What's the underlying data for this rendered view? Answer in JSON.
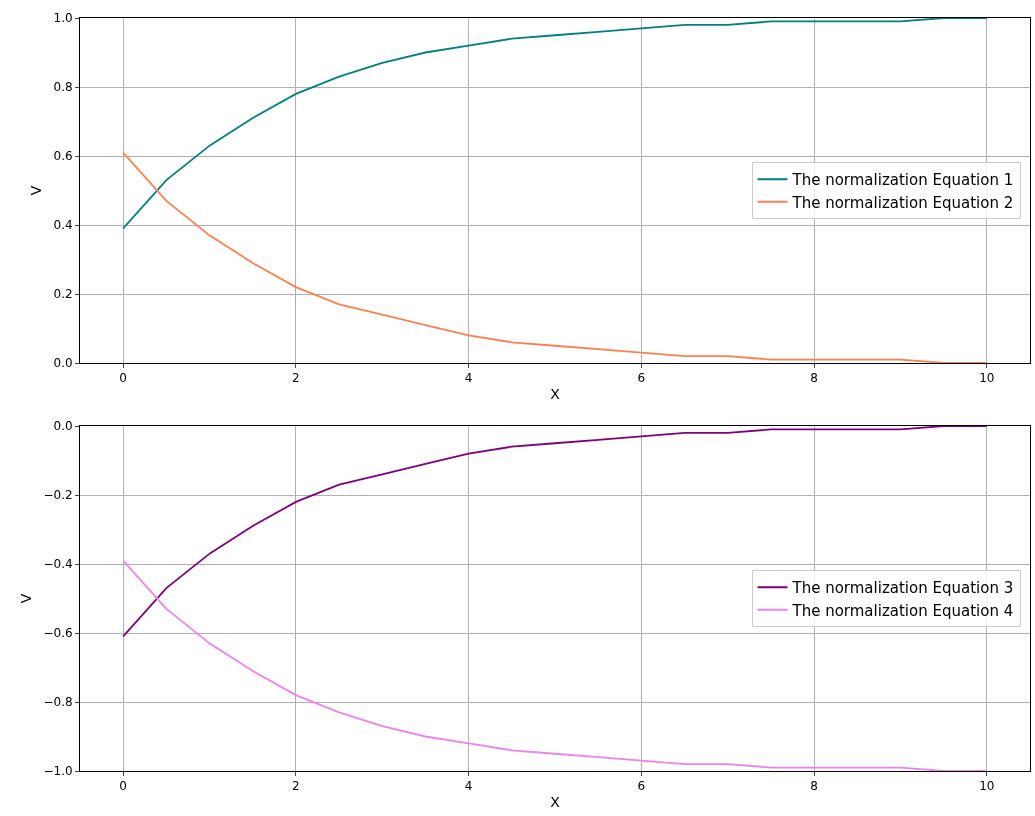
{
  "chart_data": [
    {
      "type": "line",
      "xlabel": "X",
      "ylabel": "V",
      "x": [
        0,
        0.5,
        1,
        1.5,
        2,
        2.5,
        3,
        3.5,
        4,
        4.5,
        5,
        5.5,
        6,
        6.5,
        7,
        7.5,
        8,
        8.5,
        9,
        9.5,
        10
      ],
      "series": [
        {
          "name": "The normalization Equation 1",
          "color": "#008080",
          "values": [
            0.39,
            0.53,
            0.63,
            0.71,
            0.78,
            0.83,
            0.87,
            0.9,
            0.92,
            0.94,
            0.95,
            0.96,
            0.97,
            0.98,
            0.98,
            0.99,
            0.99,
            0.99,
            0.99,
            1.0,
            1.0
          ]
        },
        {
          "name": "The normalization Equation 2",
          "color": "#ff7f50",
          "values": [
            0.61,
            0.47,
            0.37,
            0.29,
            0.22,
            0.17,
            0.14,
            0.11,
            0.08,
            0.06,
            0.05,
            0.04,
            0.03,
            0.02,
            0.02,
            0.01,
            0.01,
            0.01,
            0.01,
            0.0,
            0.0
          ]
        }
      ],
      "xlim": [
        -0.5,
        10.5
      ],
      "xticks": [
        0,
        2,
        4,
        6,
        8,
        10
      ],
      "ylim": [
        0,
        1
      ],
      "yticks": [
        {
          "value": 0,
          "label": "0.0"
        },
        {
          "value": 0.2,
          "label": "0.2"
        },
        {
          "value": 0.4,
          "label": "0.4"
        },
        {
          "value": 0.6,
          "label": "0.6"
        },
        {
          "value": 0.8,
          "label": "0.8"
        },
        {
          "value": 1,
          "label": "1.0"
        }
      ],
      "grid": true,
      "legend": "right",
      "line_style": "solid",
      "marker": "none"
    },
    {
      "type": "line",
      "xlabel": "X",
      "ylabel": "V",
      "x": [
        0,
        0.5,
        1,
        1.5,
        2,
        2.5,
        3,
        3.5,
        4,
        4.5,
        5,
        5.5,
        6,
        6.5,
        7,
        7.5,
        8,
        8.5,
        9,
        9.5,
        10
      ],
      "series": [
        {
          "name": "The normalization Equation 3",
          "color": "#800080",
          "values": [
            -0.61,
            -0.47,
            -0.37,
            -0.29,
            -0.22,
            -0.17,
            -0.14,
            -0.11,
            -0.08,
            -0.06,
            -0.05,
            -0.04,
            -0.03,
            -0.02,
            -0.02,
            -0.01,
            -0.01,
            -0.01,
            -0.01,
            0.0,
            0.0
          ]
        },
        {
          "name": "The normalization Equation 4",
          "color": "#ee82ee",
          "values": [
            -0.39,
            -0.53,
            -0.63,
            -0.71,
            -0.78,
            -0.83,
            -0.87,
            -0.9,
            -0.92,
            -0.94,
            -0.95,
            -0.96,
            -0.97,
            -0.98,
            -0.98,
            -0.99,
            -0.99,
            -0.99,
            -0.99,
            -1.0,
            -1.0
          ]
        }
      ],
      "xlim": [
        -0.5,
        10.5
      ],
      "xticks": [
        0,
        2,
        4,
        6,
        8,
        10
      ],
      "ylim": [
        -1,
        0
      ],
      "yticks": [
        {
          "value": -1,
          "label": "−1.0"
        },
        {
          "value": -0.8,
          "label": "−0.8"
        },
        {
          "value": -0.6,
          "label": "−0.6"
        },
        {
          "value": -0.4,
          "label": "−0.4"
        },
        {
          "value": -0.2,
          "label": "−0.2"
        },
        {
          "value": 0,
          "label": "0.0"
        }
      ],
      "grid": true,
      "legend": "right",
      "line_style": "solid",
      "marker": "none"
    }
  ]
}
